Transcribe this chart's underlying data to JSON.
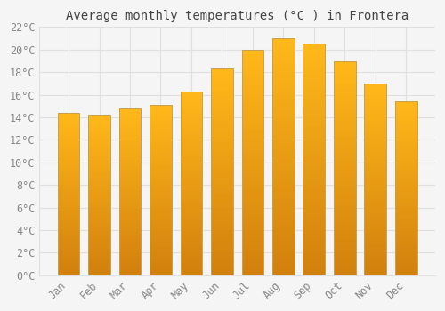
{
  "title": "Average monthly temperatures (°C ) in Frontera",
  "months": [
    "Jan",
    "Feb",
    "Mar",
    "Apr",
    "May",
    "Jun",
    "Jul",
    "Aug",
    "Sep",
    "Oct",
    "Nov",
    "Dec"
  ],
  "values": [
    14.4,
    14.2,
    14.8,
    15.1,
    16.3,
    18.3,
    20.0,
    21.0,
    20.5,
    19.0,
    17.0,
    15.4
  ],
  "bar_color_top": "#FFD050",
  "bar_color_bottom": "#F0900A",
  "bar_edge_color": "#C8A050",
  "ylim": [
    0,
    22
  ],
  "yticks": [
    0,
    2,
    4,
    6,
    8,
    10,
    12,
    14,
    16,
    18,
    20,
    22
  ],
  "background_color": "#f5f5f5",
  "plot_bg_color": "#f5f5f5",
  "grid_color": "#e0e0e0",
  "title_fontsize": 10,
  "tick_fontsize": 8.5,
  "tick_color": "#888888",
  "title_color": "#444444"
}
